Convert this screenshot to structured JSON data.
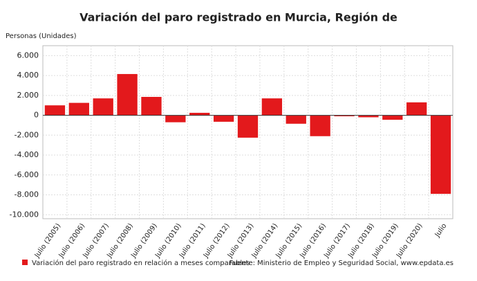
{
  "chart_data": {
    "type": "bar",
    "title": "Variación del paro registrado en Murcia, Región de",
    "y_label": "Personas (Unidades)",
    "categories": [
      "Julio (2005)",
      "Julio (2006)",
      "Julio (2007)",
      "Julio (2008)",
      "Julio (2009)",
      "Julio (2010)",
      "Julio (2011)",
      "Julio (2012)",
      "Julio (2013)",
      "Julio (2014)",
      "Julio (2015)",
      "Julio (2016)",
      "Julio (2017)",
      "Julio (2018)",
      "Julio (2019)",
      "Julio (2020)",
      "Julio"
    ],
    "series": [
      {
        "name": "Variación del paro registrado en relación a meses comparables",
        "color": "#e3191c",
        "values": [
          1000,
          1250,
          1700,
          4150,
          1850,
          -700,
          250,
          -650,
          -2250,
          1700,
          -850,
          -2100,
          -100,
          -200,
          -450,
          1300,
          -7900
        ]
      }
    ],
    "ylim": [
      -10400,
      7000
    ],
    "yticks": [
      {
        "value": -10000,
        "label": "-10.000"
      },
      {
        "value": -8000,
        "label": "-8.000"
      },
      {
        "value": -6000,
        "label": "-6.000"
      },
      {
        "value": -4000,
        "label": "-4.000"
      },
      {
        "value": -2000,
        "label": "-2.000"
      },
      0,
      {
        "value": 2000,
        "label": "2.000"
      },
      {
        "value": 4000,
        "label": "4.000"
      },
      {
        "value": 6000,
        "label": "6.000"
      }
    ],
    "grid": true,
    "source": "Fuente: Ministerio de Empleo y Seguridad Social, www.epdata.es"
  }
}
